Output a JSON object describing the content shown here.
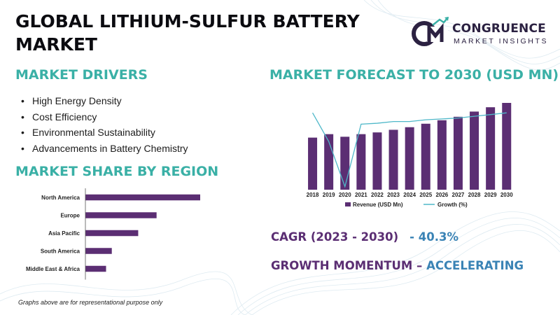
{
  "header": {
    "title": "GLOBAL LITHIUM-SULFUR BATTERY MARKET"
  },
  "logo": {
    "name": "CONGRUENCE",
    "subtitle": "MARKET INSIGHTS",
    "icon": "cm-logo-icon",
    "colors": {
      "dark": "#2b2141",
      "accent": "#3ab0a6"
    }
  },
  "drivers": {
    "title": "MARKET DRIVERS",
    "items": [
      "High Energy Density",
      "Cost Efficiency",
      "Environmental Sustainability",
      "Advancements in Battery Chemistry"
    ]
  },
  "region": {
    "title": "MARKET SHARE BY REGION"
  },
  "forecast": {
    "title": "MARKET FORECAST TO 2030 (USD MN)"
  },
  "metrics": {
    "cagr_label": "CAGR (2023 - 2030)",
    "cagr_value": "- 40.3%",
    "momentum_label": "GROWTH MOMENTUM",
    "momentum_sep": " – ",
    "momentum_value": "ACCELERATING"
  },
  "footnote": "Graphs above are for representational purpose only",
  "colors": {
    "accent_teal": "#3ab0a6",
    "bar_purple": "#5b2e73",
    "line_teal": "#4fb8c9",
    "cagr_blue": "#3a83b5"
  },
  "chart_data": [
    {
      "type": "bar",
      "orientation": "horizontal",
      "title": "MARKET SHARE BY REGION",
      "categories": [
        "North America",
        "Europe",
        "Asia Pacific",
        "South America",
        "Middle East & Africa"
      ],
      "values": [
        100,
        62,
        46,
        23,
        18
      ],
      "xlim": [
        0,
        100
      ]
    },
    {
      "type": "bar",
      "title": "MARKET FORECAST TO 2030 (USD MN)",
      "categories": [
        "2018",
        "2019",
        "2020",
        "2021",
        "2022",
        "2023",
        "2024",
        "2025",
        "2026",
        "2027",
        "2028",
        "2029",
        "2030"
      ],
      "series": [
        {
          "name": "Revenue (USD Mn)",
          "type": "bar",
          "values": [
            60,
            64,
            61,
            64,
            66,
            69,
            72,
            76,
            80,
            84,
            90,
            95,
            100
          ]
        },
        {
          "name": "Growth (%)",
          "type": "line",
          "values": [
            95,
            62,
            10,
            82,
            83,
            85,
            85,
            87,
            88,
            89,
            91,
            93,
            95
          ]
        }
      ],
      "legend_position": "bottom",
      "grid": false
    }
  ]
}
